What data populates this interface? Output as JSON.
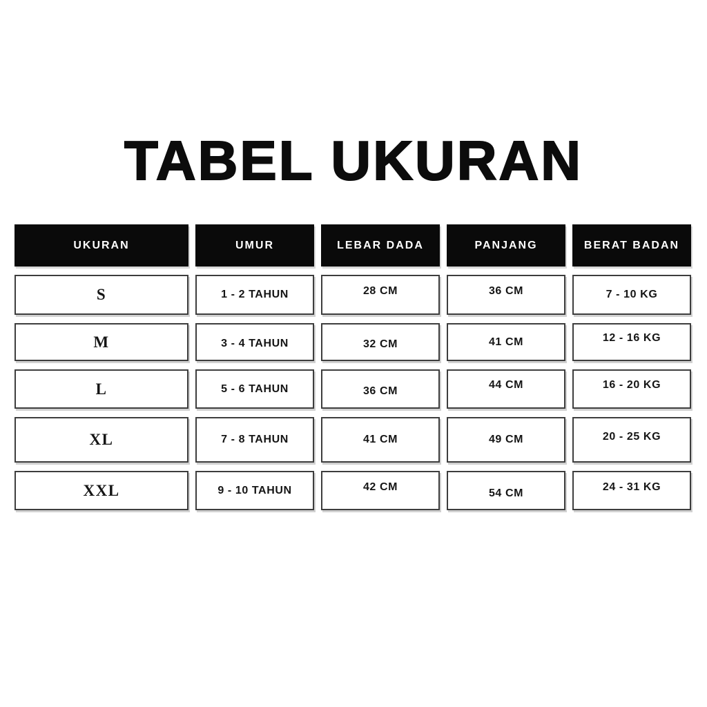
{
  "title": "TABEL UKURAN",
  "chart_data": {
    "type": "table",
    "title": "TABEL UKURAN",
    "columns": [
      "UKURAN",
      "UMUR",
      "LEBAR DADA",
      "PANJANG",
      "BERAT BADAN"
    ],
    "rows": [
      [
        "S",
        "1 - 2 TAHUN",
        "28 CM",
        "36 CM",
        "7 - 10 KG"
      ],
      [
        "M",
        "3 - 4 TAHUN",
        "32 CM",
        "41 CM",
        "12 - 16 KG"
      ],
      [
        "L",
        "5 - 6 TAHUN",
        "36 CM",
        "44 CM",
        "16 - 20 KG"
      ],
      [
        "XL",
        "7 - 8 TAHUN",
        "41 CM",
        "49 CM",
        "20 - 25 KG"
      ],
      [
        "XXL",
        "9 - 10 TAHUN",
        "42 CM",
        "54 CM",
        "24 - 31 KG"
      ]
    ],
    "legend": null,
    "grid": false
  },
  "colors": {
    "page_bg": "#ffffff",
    "ink": "#0c0c0c",
    "header_bg": "#0a0a0a",
    "header_text": "#ffffff",
    "cell_border": "#3d3d3d",
    "text": "#151515"
  }
}
